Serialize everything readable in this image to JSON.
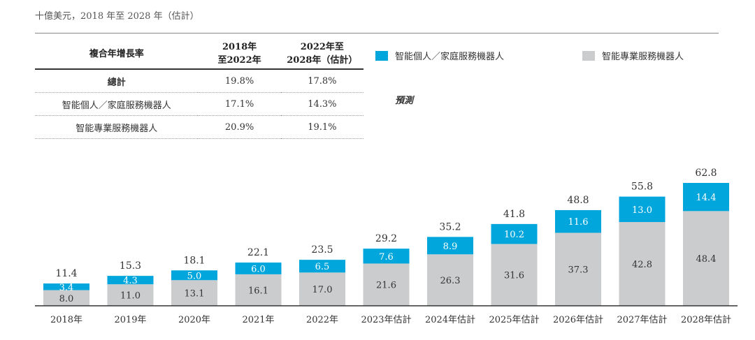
{
  "unit_label": "十億美元，2018 年至 2028 年（估計）",
  "table": {
    "headers": [
      "複合年增長率",
      "2018年\n至2022年",
      "2022年至\n2028年（估計）"
    ],
    "rows": [
      {
        "label": "總計",
        "v1": "19.8%",
        "v2": "17.8%"
      },
      {
        "label": "智能個人／家庭服務機器人",
        "v1": "17.1%",
        "v2": "14.3%"
      },
      {
        "label": "智能專業服務機器人",
        "v1": "20.9%",
        "v2": "19.1%"
      }
    ]
  },
  "forecast_label": "預測",
  "colors": {
    "personal": "#00a6dc",
    "professional": "#cbcccd",
    "axis": "#333333"
  },
  "chart_data": {
    "type": "bar",
    "stacked": true,
    "title": "十億美元，2018 年至 2028 年（估計）",
    "categories": [
      "2018年",
      "2019年",
      "2020年",
      "2021年",
      "2022年",
      "2023年估計",
      "2024年估計",
      "2025年估計",
      "2026年估計",
      "2027年估計",
      "2028年估計"
    ],
    "series": [
      {
        "name": "智能專業服務機器人",
        "values": [
          8.0,
          11.0,
          13.1,
          16.1,
          17.0,
          21.6,
          26.3,
          31.6,
          37.3,
          42.8,
          48.4
        ]
      },
      {
        "name": "智能個人／家庭服務機器人",
        "values": [
          3.4,
          4.3,
          5.0,
          6.0,
          6.5,
          7.6,
          8.9,
          10.2,
          11.6,
          13.0,
          14.4
        ]
      }
    ],
    "totals": [
      11.4,
      15.3,
      18.1,
      22.1,
      23.5,
      29.2,
      35.2,
      41.8,
      48.8,
      55.8,
      62.8
    ],
    "ylim": [
      0,
      62.8
    ],
    "legend": [
      "智能個人／家庭服務機器人",
      "智能專業服務機器人"
    ]
  }
}
